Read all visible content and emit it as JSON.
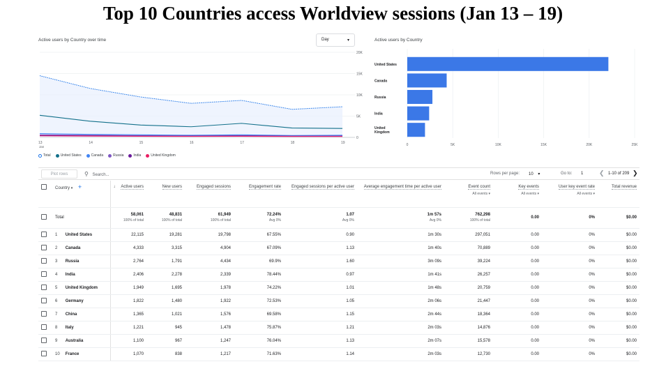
{
  "page_title": "Top 10 Countries access Worldview sessions (Jan 13 – 19)",
  "line_card": {
    "title": "Active users by Country over time",
    "dropdown": "Day",
    "x_ticks": [
      "13",
      "14",
      "15",
      "16",
      "17",
      "18",
      "19"
    ],
    "x_sub": "Jan",
    "y_ticks": [
      "0",
      "5K",
      "10K",
      "15K",
      "20K"
    ]
  },
  "bar_card": {
    "title": "Active users by Country",
    "labels": [
      "United States",
      "Canada",
      "Russia",
      "India",
      "United Kingdom"
    ],
    "x_ticks": [
      "0",
      "5K",
      "10K",
      "15K",
      "20K",
      "25K"
    ]
  },
  "legend": [
    "Total",
    "United States",
    "Canada",
    "Russia",
    "India",
    "United Kingdom"
  ],
  "colors": {
    "total": "#1a73e8",
    "united_states": "#12708a",
    "canada": "#4285f4",
    "russia": "#7e57c2",
    "india": "#6a1b9a",
    "united_kingdom": "#e91e63",
    "bar": "#3b78e7"
  },
  "chart_data": [
    {
      "type": "line",
      "title": "",
      "x": [
        "Jan 13",
        "Jan 14",
        "Jan 15",
        "Jan 16",
        "Jan 17",
        "Jan 18",
        "Jan 19"
      ],
      "ylim": [
        0,
        20000
      ],
      "series": [
        {
          "name": "Total",
          "values": [
            14500,
            11500,
            9500,
            8000,
            8700,
            6600,
            7200
          ]
        },
        {
          "name": "United States",
          "values": [
            5200,
            3800,
            2900,
            2500,
            3300,
            2200,
            2100
          ]
        },
        {
          "name": "Canada",
          "values": [
            900,
            700,
            600,
            500,
            600,
            450,
            500
          ]
        },
        {
          "name": "Russia",
          "values": [
            600,
            500,
            400,
            350,
            400,
            300,
            300
          ]
        },
        {
          "name": "India",
          "values": [
            450,
            380,
            320,
            300,
            350,
            280,
            280
          ]
        },
        {
          "name": "United Kingdom",
          "values": [
            350,
            300,
            250,
            230,
            260,
            220,
            220
          ]
        }
      ]
    },
    {
      "type": "bar",
      "title": "",
      "categories": [
        "United States",
        "Canada",
        "Russia",
        "India",
        "United Kingdom"
      ],
      "values": [
        22115,
        4333,
        2764,
        2406,
        1949
      ],
      "xlim": [
        0,
        25000
      ]
    }
  ],
  "toolbar": {
    "plot_rows": "Plot rows",
    "search_placeholder": "Search...",
    "rows_per_page_label": "Rows per page:",
    "rows_per_page": "10",
    "goto_label": "Go to:",
    "goto_value": "1",
    "page_info": "1-10 of 209"
  },
  "table": {
    "headers": {
      "country": "Country",
      "active_users": "Active users",
      "new_users": "New users",
      "engaged_sessions": "Engaged sessions",
      "engagement_rate": "Engagement rate",
      "engaged_per_user": "Engaged sessions per active user",
      "avg_engagement": "Average engagement time per active user",
      "event_count": "Event count",
      "key_events": "Key events",
      "user_key_event_rate": "User key event rate",
      "total_revenue": "Total revenue",
      "all_events": "All events"
    },
    "total": {
      "label": "Total",
      "active_users": "58,061",
      "active_users_sub": "100% of total",
      "new_users": "48,831",
      "new_users_sub": "100% of total",
      "engaged_sessions": "61,949",
      "engaged_sessions_sub": "100% of total",
      "engagement_rate": "72.24%",
      "engagement_rate_sub": "Avg 0%",
      "engaged_per_user": "1.07",
      "engaged_per_user_sub": "Avg 0%",
      "avg_engagement": "1m 57s",
      "avg_engagement_sub": "Avg 0%",
      "event_count": "762,298",
      "event_count_sub": "100% of total",
      "key_events": "0.00",
      "user_key_event_rate": "0%",
      "total_revenue": "$0.00"
    },
    "rows": [
      {
        "idx": "1",
        "country": "United States",
        "active_users": "22,115",
        "new_users": "19,281",
        "engaged_sessions": "19,798",
        "engagement_rate": "67.55%",
        "engaged_per_user": "0.90",
        "avg_engagement": "1m 30s",
        "event_count": "297,051",
        "key_events": "0.00",
        "user_key_event_rate": "0%",
        "total_revenue": "$0.00"
      },
      {
        "idx": "2",
        "country": "Canada",
        "active_users": "4,333",
        "new_users": "3,315",
        "engaged_sessions": "4,904",
        "engagement_rate": "67.09%",
        "engaged_per_user": "1.13",
        "avg_engagement": "1m 40s",
        "event_count": "70,889",
        "key_events": "0.00",
        "user_key_event_rate": "0%",
        "total_revenue": "$0.00"
      },
      {
        "idx": "3",
        "country": "Russia",
        "active_users": "2,764",
        "new_users": "1,791",
        "engaged_sessions": "4,434",
        "engagement_rate": "69.9%",
        "engaged_per_user": "1.60",
        "avg_engagement": "3m 09s",
        "event_count": "39,224",
        "key_events": "0.00",
        "user_key_event_rate": "0%",
        "total_revenue": "$0.00"
      },
      {
        "idx": "4",
        "country": "India",
        "active_users": "2,406",
        "new_users": "2,278",
        "engaged_sessions": "2,339",
        "engagement_rate": "78.44%",
        "engaged_per_user": "0.97",
        "avg_engagement": "1m 41s",
        "event_count": "26,257",
        "key_events": "0.00",
        "user_key_event_rate": "0%",
        "total_revenue": "$0.00"
      },
      {
        "idx": "5",
        "country": "United Kingdom",
        "active_users": "1,949",
        "new_users": "1,695",
        "engaged_sessions": "1,978",
        "engagement_rate": "74.22%",
        "engaged_per_user": "1.01",
        "avg_engagement": "1m 48s",
        "event_count": "20,759",
        "key_events": "0.00",
        "user_key_event_rate": "0%",
        "total_revenue": "$0.00"
      },
      {
        "idx": "6",
        "country": "Germany",
        "active_users": "1,822",
        "new_users": "1,480",
        "engaged_sessions": "1,922",
        "engagement_rate": "72.53%",
        "engaged_per_user": "1.05",
        "avg_engagement": "2m 06s",
        "event_count": "21,447",
        "key_events": "0.00",
        "user_key_event_rate": "0%",
        "total_revenue": "$0.00"
      },
      {
        "idx": "7",
        "country": "China",
        "active_users": "1,365",
        "new_users": "1,021",
        "engaged_sessions": "1,576",
        "engagement_rate": "69.58%",
        "engaged_per_user": "1.15",
        "avg_engagement": "2m 44s",
        "event_count": "18,364",
        "key_events": "0.00",
        "user_key_event_rate": "0%",
        "total_revenue": "$0.00"
      },
      {
        "idx": "8",
        "country": "Italy",
        "active_users": "1,221",
        "new_users": "945",
        "engaged_sessions": "1,478",
        "engagement_rate": "75.87%",
        "engaged_per_user": "1.21",
        "avg_engagement": "2m 03s",
        "event_count": "14,876",
        "key_events": "0.00",
        "user_key_event_rate": "0%",
        "total_revenue": "$0.00"
      },
      {
        "idx": "9",
        "country": "Australia",
        "active_users": "1,100",
        "new_users": "967",
        "engaged_sessions": "1,247",
        "engagement_rate": "76.04%",
        "engaged_per_user": "1.13",
        "avg_engagement": "2m 07s",
        "event_count": "15,578",
        "key_events": "0.00",
        "user_key_event_rate": "0%",
        "total_revenue": "$0.00"
      },
      {
        "idx": "10",
        "country": "France",
        "active_users": "1,070",
        "new_users": "838",
        "engaged_sessions": "1,217",
        "engagement_rate": "71.63%",
        "engaged_per_user": "1.14",
        "avg_engagement": "2m 03s",
        "event_count": "12,730",
        "key_events": "0.00",
        "user_key_event_rate": "0%",
        "total_revenue": "$0.00"
      }
    ]
  }
}
